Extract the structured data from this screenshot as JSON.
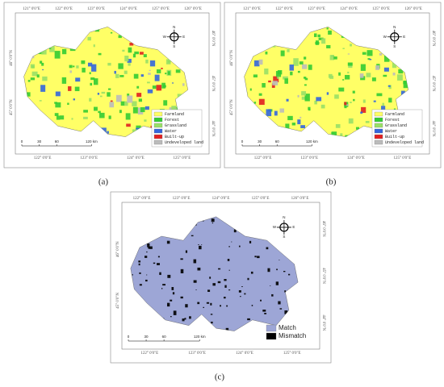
{
  "panels": [
    {
      "caption": "(a)",
      "top_labels": [
        "121° 0'0\"E",
        "122° 0'0\"E",
        "123° 0'0\"E",
        "124° 0'0\"E",
        "125° 0'0\"E",
        "126° 0'0\"E"
      ],
      "bottom_labels": [
        "122° 0'0\"E",
        "123° 0'0\"E",
        "124° 0'0\"E",
        "125° 0'0\"E"
      ],
      "left_labels": [
        "46° 0'0\"N",
        "45° 0'0\"N"
      ],
      "right_labels": [
        "46° 0'0\"N",
        "45° 0'0\"N",
        "44° 0'0\"N"
      ],
      "compass": [
        "N",
        "W",
        "E",
        "S"
      ],
      "scale": [
        "0",
        "30",
        "60",
        "120 km"
      ],
      "legend": [
        {
          "label": "Farmland",
          "color": "#ffff66"
        },
        {
          "label": "Forest",
          "color": "#33cc33"
        },
        {
          "label": "Grassland",
          "color": "#99e066"
        },
        {
          "label": "Water",
          "color": "#3366dd"
        },
        {
          "label": "Built-up",
          "color": "#e02020"
        },
        {
          "label": "Undeveloped land",
          "color": "#bbbbbb"
        }
      ]
    },
    {
      "caption": "(b)",
      "top_labels": [
        "121° 0'0\"E",
        "122° 0'0\"E",
        "123° 0'0\"E",
        "124° 0'0\"E",
        "125° 0'0\"E",
        "126° 0'0\"E"
      ],
      "bottom_labels": [
        "122° 0'0\"E",
        "123° 0'0\"E",
        "124° 0'0\"E",
        "125° 0'0\"E"
      ],
      "left_labels": [
        "46° 0'0\"N",
        "45° 0'0\"N"
      ],
      "right_labels": [
        "46° 0'0\"N",
        "45° 0'0\"N",
        "44° 0'0\"N"
      ],
      "compass": [
        "N",
        "W",
        "E",
        "S"
      ],
      "scale": [
        "0",
        "30",
        "60",
        "120 km"
      ],
      "legend": [
        {
          "label": "Farmland",
          "color": "#ffff66"
        },
        {
          "label": "Forest",
          "color": "#33cc33"
        },
        {
          "label": "Grassland",
          "color": "#99e066"
        },
        {
          "label": "Water",
          "color": "#3366dd"
        },
        {
          "label": "Built-up",
          "color": "#e02020"
        },
        {
          "label": "Undeveloped land",
          "color": "#bbbbbb"
        }
      ]
    },
    {
      "caption": "(c)",
      "top_labels": [
        "122° 0'0\"E",
        "123° 0'0\"E",
        "124° 0'0\"E",
        "125° 0'0\"E",
        "126° 0'0\"E"
      ],
      "bottom_labels": [
        "122° 0'0\"E",
        "123° 0'0\"E",
        "124° 0'0\"E",
        "125° 0'0\"E"
      ],
      "left_labels": [
        "46° 0'0\"N",
        "45° 0'0\"N"
      ],
      "right_labels": [
        "46° 0'0\"N",
        "45° 0'0\"N",
        "44° 0'0\"N"
      ],
      "compass": [
        "N",
        "W",
        "E",
        "S"
      ],
      "scale": [
        "0",
        "30",
        "60",
        "120 km"
      ],
      "legend": [
        {
          "label": "Match",
          "color": "#9da6d6"
        },
        {
          "label": "Mismatch",
          "color": "#000000"
        }
      ]
    }
  ]
}
